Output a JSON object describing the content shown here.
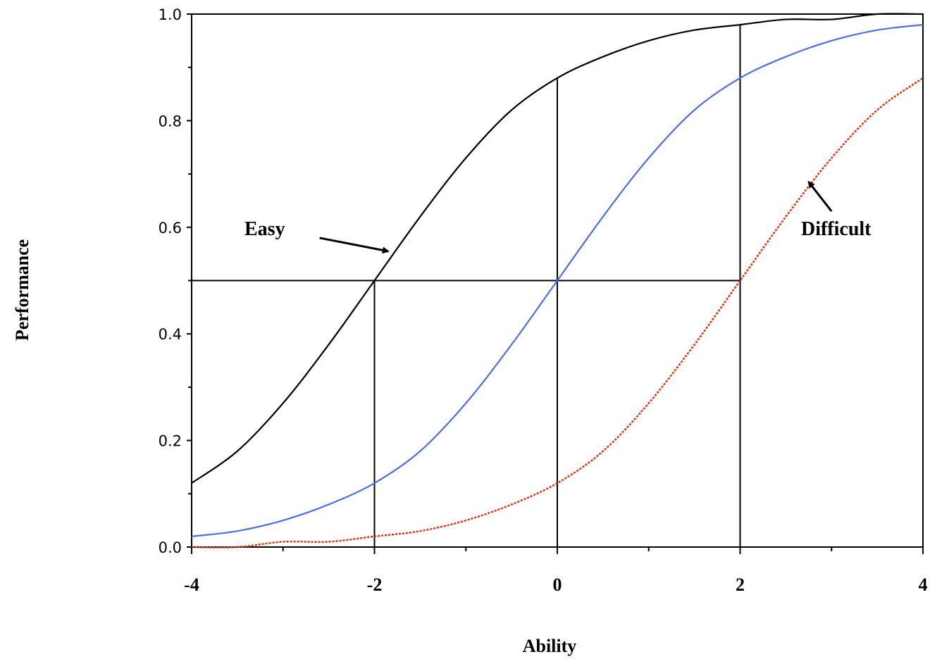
{
  "chart_data": {
    "type": "line",
    "xlabel": "Ability",
    "ylabel": "Performance",
    "xlim": [
      -4,
      4
    ],
    "ylim": [
      0,
      1
    ],
    "grid": false,
    "legend": "none",
    "xticks": [
      -4,
      -2,
      0,
      2,
      4
    ],
    "xtick_labels": [
      "-4",
      "-2",
      "0",
      "2",
      "4"
    ],
    "yticks": [
      0.0,
      0.2,
      0.4,
      0.6,
      0.8,
      1.0
    ],
    "ytick_labels": [
      "0.0",
      "0.2",
      "0.4",
      "0.6",
      "0.8",
      "1.0"
    ],
    "series": [
      {
        "color": "#000000",
        "style": "solid",
        "x": [
          -4,
          -3.5,
          -3,
          -2.5,
          -2,
          -1.5,
          -1,
          -0.5,
          0,
          0.5,
          1,
          1.5,
          2,
          2.5,
          3,
          3.5,
          4
        ],
        "y": [
          0.12,
          0.18,
          0.27,
          0.38,
          0.5,
          0.62,
          0.73,
          0.82,
          0.88,
          0.92,
          0.95,
          0.97,
          0.98,
          0.99,
          0.99,
          1.0,
          1.0
        ]
      },
      {
        "color": "#4f6fe0",
        "style": "solid",
        "x": [
          -4,
          -3.5,
          -3,
          -2.5,
          -2,
          -1.5,
          -1,
          -0.5,
          0,
          0.5,
          1,
          1.5,
          2,
          2.5,
          3,
          3.5,
          4
        ],
        "y": [
          0.02,
          0.03,
          0.05,
          0.08,
          0.12,
          0.18,
          0.27,
          0.38,
          0.5,
          0.62,
          0.73,
          0.82,
          0.88,
          0.92,
          0.95,
          0.97,
          0.98
        ]
      },
      {
        "color": "#e03010",
        "style": "dotted",
        "x": [
          -4,
          -3.5,
          -3,
          -2.5,
          -2,
          -1.5,
          -1,
          -0.5,
          0,
          0.5,
          1,
          1.5,
          2,
          2.5,
          3,
          3.5,
          4
        ],
        "y": [
          0.0,
          0.0,
          0.01,
          0.01,
          0.02,
          0.03,
          0.05,
          0.08,
          0.12,
          0.18,
          0.27,
          0.38,
          0.5,
          0.62,
          0.73,
          0.82,
          0.88
        ]
      }
    ],
    "reference_lines": [
      {
        "type": "horizontal",
        "y": 0.5,
        "x_from": -4,
        "x_to": 2
      },
      {
        "type": "vertical",
        "x": -2,
        "y_from": 0,
        "y_to": 0.5
      },
      {
        "type": "vertical",
        "x": 0,
        "y_from": 0,
        "y_to": 0.88
      },
      {
        "type": "vertical",
        "x": 2,
        "y_from": 0,
        "y_to": 0.98
      }
    ],
    "annotations": [
      {
        "text": "Easy",
        "text_x": -3.2,
        "text_y": 0.585,
        "arrow_from": [
          -2.6,
          0.58
        ],
        "arrow_to": [
          -1.85,
          0.555
        ]
      },
      {
        "text": "Difficult",
        "text_x": 3.05,
        "text_y": 0.585,
        "arrow_from": [
          3.0,
          0.63
        ],
        "arrow_to": [
          2.75,
          0.685
        ]
      }
    ]
  }
}
